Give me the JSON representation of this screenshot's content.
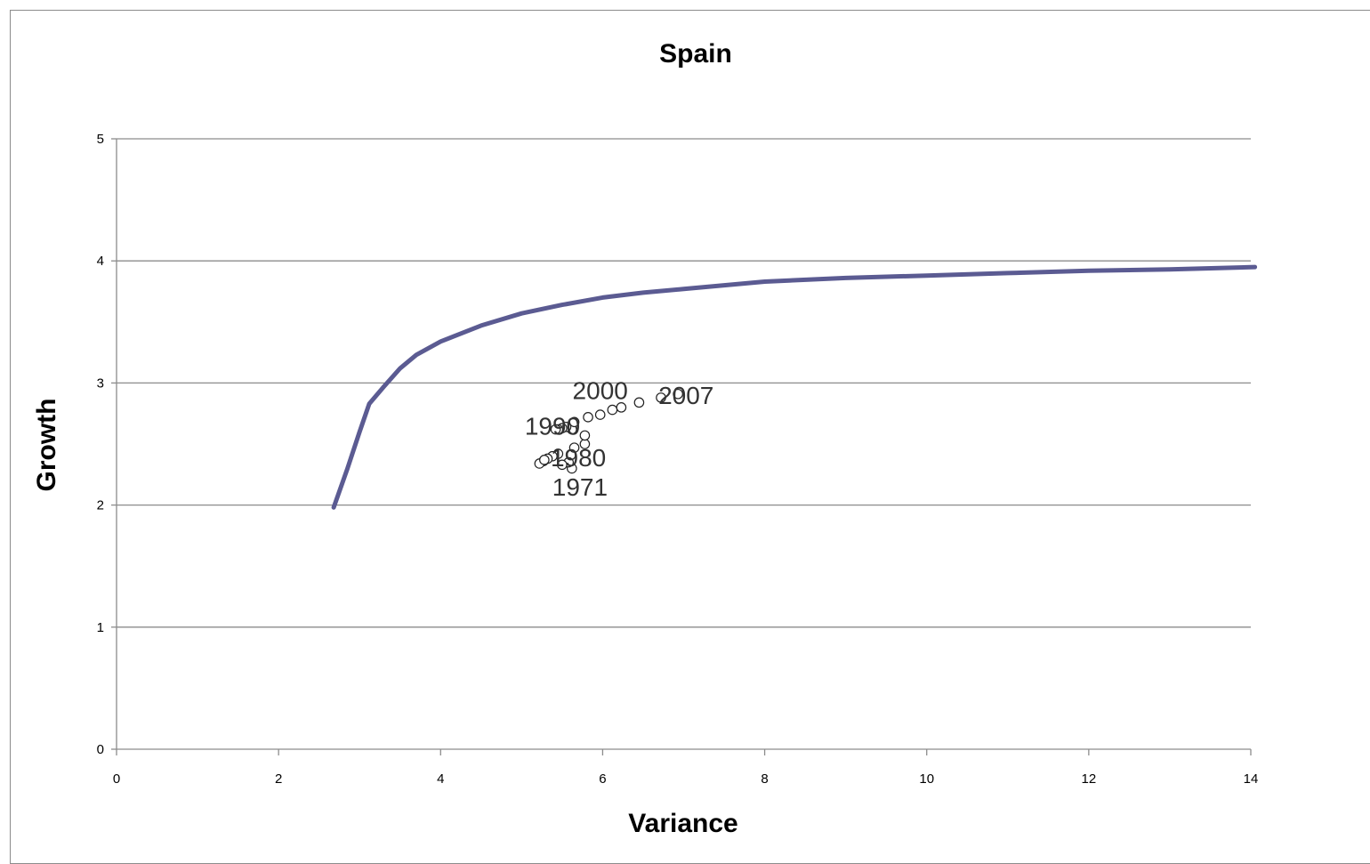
{
  "chart_data": {
    "type": "scatter",
    "title": "Spain",
    "xlabel": "Variance",
    "ylabel": "Growth",
    "xlim": [
      0,
      14
    ],
    "ylim": [
      0,
      5
    ],
    "x_ticks": [
      0,
      2,
      4,
      6,
      8,
      10,
      12,
      14
    ],
    "y_ticks": [
      0,
      1,
      2,
      3,
      4,
      5
    ],
    "grid": "horizontal",
    "legend": "none",
    "series": [
      {
        "kind": "line",
        "color": "#5b5b92",
        "points": [
          [
            2.68,
            1.98
          ],
          [
            2.85,
            2.3
          ],
          [
            3.0,
            2.6
          ],
          [
            3.12,
            2.83
          ],
          [
            3.3,
            2.97
          ],
          [
            3.5,
            3.12
          ],
          [
            3.7,
            3.23
          ],
          [
            4.0,
            3.34
          ],
          [
            4.5,
            3.47
          ],
          [
            5.0,
            3.57
          ],
          [
            5.5,
            3.64
          ],
          [
            6.0,
            3.7
          ],
          [
            6.5,
            3.74
          ],
          [
            7.0,
            3.77
          ],
          [
            8.0,
            3.83
          ],
          [
            9.0,
            3.86
          ],
          [
            10.0,
            3.88
          ],
          [
            11.0,
            3.9
          ],
          [
            12.0,
            3.92
          ],
          [
            13.0,
            3.93
          ],
          [
            14.05,
            3.95
          ]
        ]
      },
      {
        "kind": "scatter",
        "color": "#222222",
        "points": [
          [
            5.62,
            2.3
          ],
          [
            5.58,
            2.35
          ],
          [
            5.5,
            2.33
          ],
          [
            5.45,
            2.42
          ],
          [
            5.38,
            2.4
          ],
          [
            5.32,
            2.38
          ],
          [
            5.27,
            2.36
          ],
          [
            5.22,
            2.34
          ],
          [
            5.28,
            2.37
          ],
          [
            5.65,
            2.47
          ],
          [
            5.78,
            2.5
          ],
          [
            5.78,
            2.57
          ],
          [
            5.62,
            2.62
          ],
          [
            5.55,
            2.64
          ],
          [
            5.5,
            2.63
          ],
          [
            5.45,
            2.62
          ],
          [
            5.42,
            2.62
          ],
          [
            5.65,
            2.68
          ],
          [
            5.82,
            2.72
          ],
          [
            5.97,
            2.74
          ],
          [
            6.12,
            2.78
          ],
          [
            6.23,
            2.8
          ],
          [
            6.45,
            2.84
          ],
          [
            6.72,
            2.88
          ],
          [
            6.93,
            2.91
          ]
        ]
      }
    ],
    "annotations": [
      {
        "text": "2000",
        "x": 5.97,
        "y": 2.94
      },
      {
        "text": "2007",
        "x": 7.03,
        "y": 2.9
      },
      {
        "text": "1990",
        "x": 5.38,
        "y": 2.65
      },
      {
        "text": "1980",
        "x": 5.7,
        "y": 2.39
      },
      {
        "text": "1971",
        "x": 5.72,
        "y": 2.15
      }
    ]
  }
}
